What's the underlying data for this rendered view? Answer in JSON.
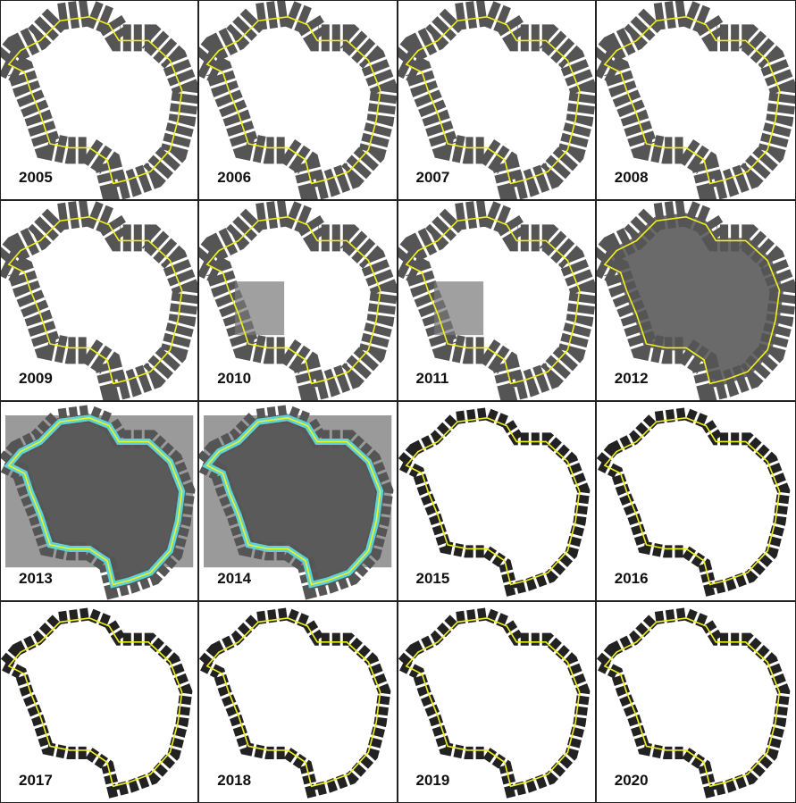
{
  "panels": [
    {
      "label": "2005"
    },
    {
      "label": "2006"
    },
    {
      "label": "2007"
    },
    {
      "label": "2008"
    },
    {
      "label": "2009"
    },
    {
      "label": "2010"
    },
    {
      "label": "2011"
    },
    {
      "label": "2012"
    },
    {
      "label": "2013"
    },
    {
      "label": "2014"
    },
    {
      "label": "2015"
    },
    {
      "label": "2016"
    },
    {
      "label": "2017"
    },
    {
      "label": "2018"
    },
    {
      "label": "2019"
    },
    {
      "label": "2020"
    }
  ]
}
